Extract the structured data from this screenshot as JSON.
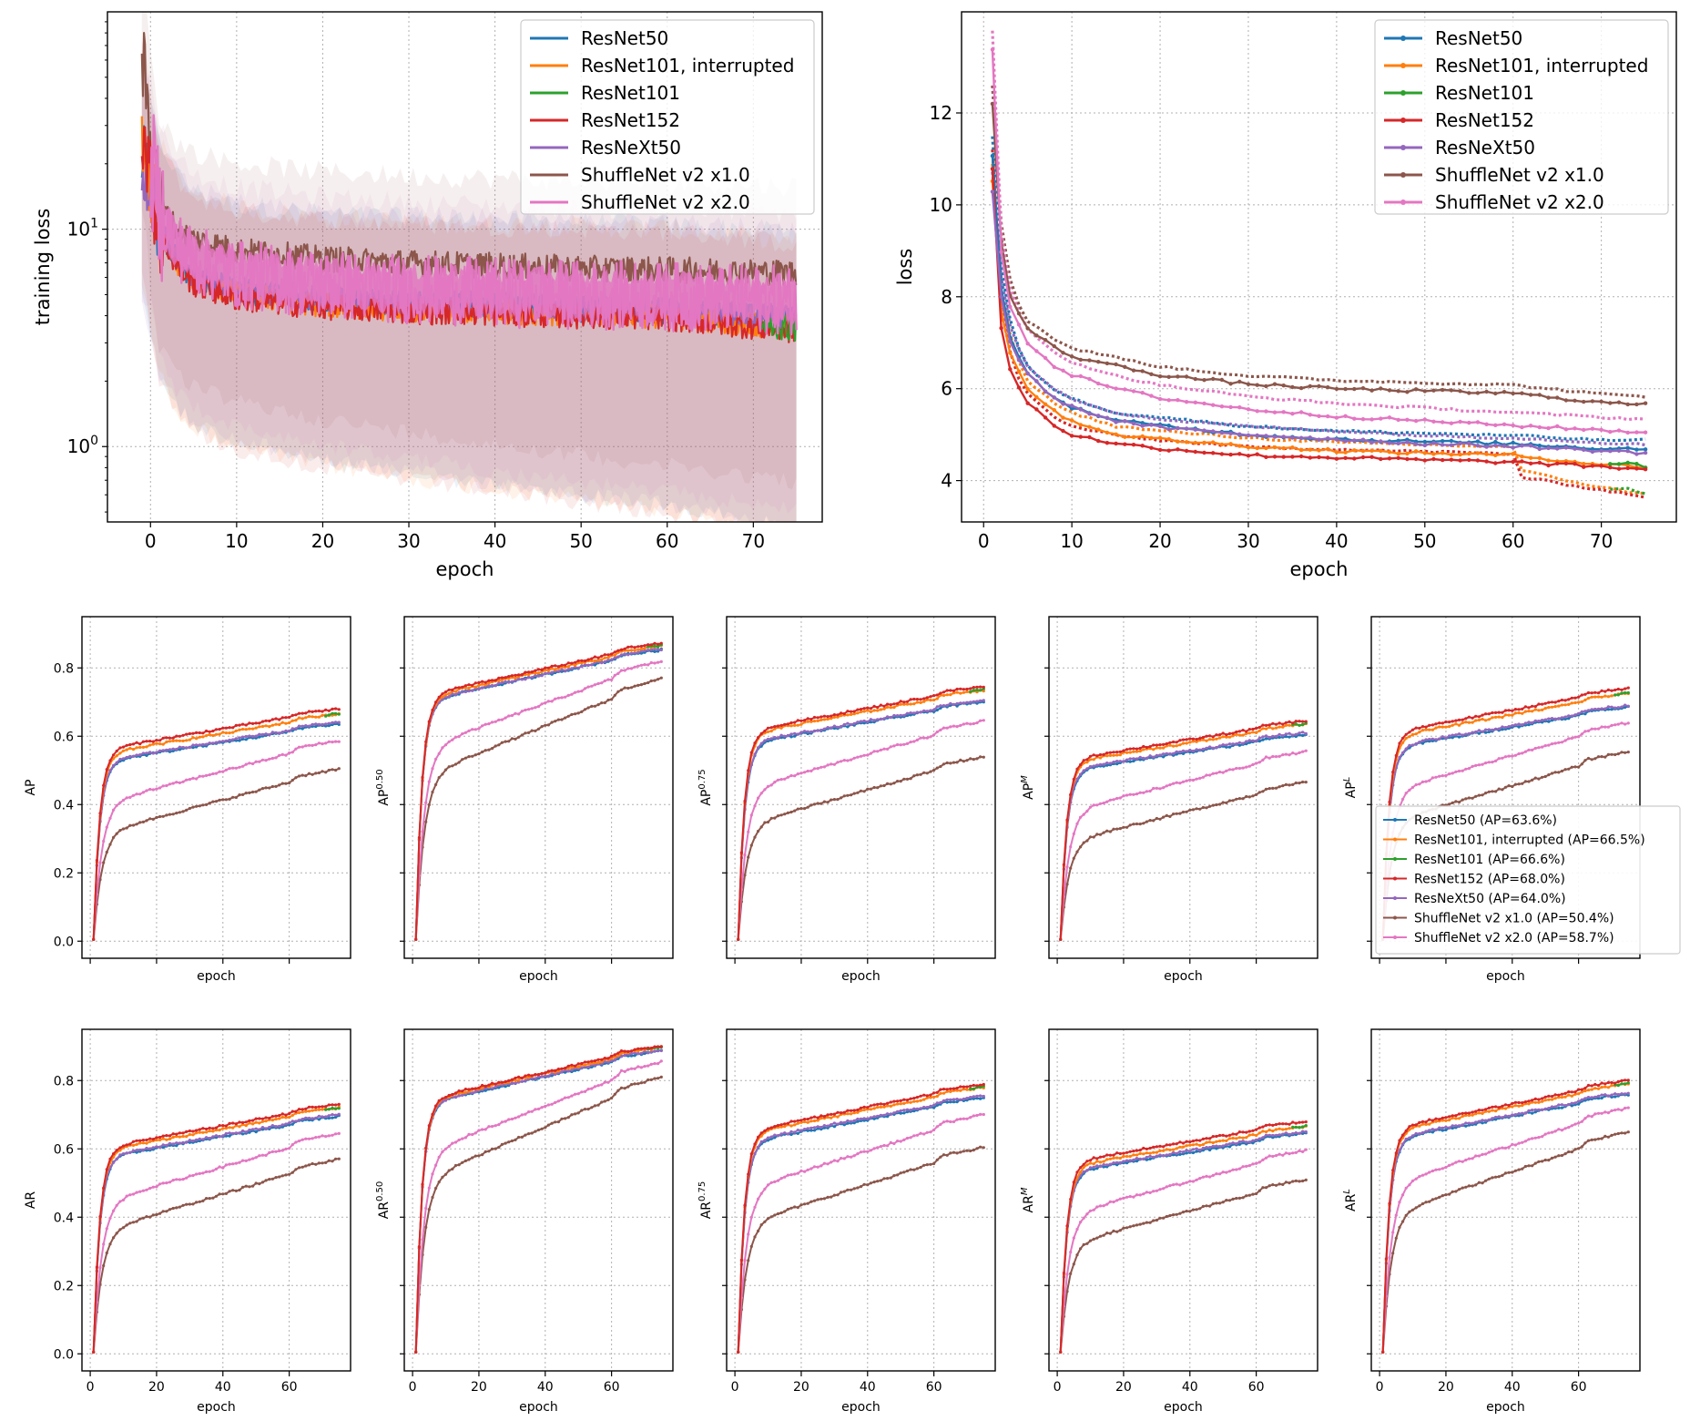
{
  "figure": "training-curves-grid",
  "series_names": [
    "ResNet50",
    "ResNet101, interrupted",
    "ResNet101",
    "ResNet152",
    "ResNeXt50",
    "ShuffleNet v2 x1.0",
    "ShuffleNet v2 x2.0"
  ],
  "colors": [
    "#1f77b4",
    "#ff7f0e",
    "#2ca02c",
    "#d62728",
    "#9467bd",
    "#8c564b",
    "#e377c2"
  ],
  "chart_data": [
    {
      "id": "training-loss",
      "type": "line",
      "scale": "log",
      "xlabel": "epoch",
      "ylabel": "training loss",
      "xlim": [
        -5,
        78
      ],
      "ylim": [
        0.45,
        100
      ],
      "xticks": [
        0,
        10,
        20,
        30,
        40,
        50,
        60,
        70
      ],
      "yticks": [
        {
          "value": 1,
          "base": "10",
          "exp": "0"
        },
        {
          "value": 10,
          "base": "10",
          "exp": "1"
        }
      ],
      "legend_position": "top-right",
      "series": [
        {
          "name": "ResNet50",
          "x": [
            -1,
            0,
            1,
            3,
            5,
            10,
            20,
            30,
            40,
            50,
            60,
            75
          ],
          "y": [
            24,
            15,
            10,
            7.2,
            6,
            5.2,
            4.7,
            4.5,
            4.4,
            4.3,
            4.2,
            3.8
          ]
        },
        {
          "name": "ResNet101, interrupted",
          "x": [
            -1,
            0,
            1,
            3,
            5,
            10,
            20,
            30,
            40,
            50,
            60,
            75
          ],
          "y": [
            26,
            15,
            10,
            7,
            5.8,
            5,
            4.5,
            4.3,
            4.2,
            4.1,
            4,
            3.5
          ]
        },
        {
          "name": "ResNet101",
          "x": [
            71,
            75
          ],
          "y": [
            3.6,
            3.5
          ]
        },
        {
          "name": "ResNet152",
          "x": [
            -1,
            0,
            1,
            3,
            5,
            10,
            20,
            30,
            40,
            50,
            60,
            75
          ],
          "y": [
            30,
            16,
            9.5,
            6.8,
            5.6,
            4.8,
            4.4,
            4.2,
            4.1,
            4,
            3.9,
            3.4
          ]
        },
        {
          "name": "ResNeXt50",
          "x": [
            -1,
            0,
            1,
            3,
            5,
            10,
            20,
            30,
            40,
            50,
            60,
            75
          ],
          "y": [
            22,
            14,
            10,
            7.3,
            6.1,
            5.3,
            4.8,
            4.6,
            4.5,
            4.4,
            4.3,
            3.9
          ]
        },
        {
          "name": "ShuffleNet v2 x1.0",
          "x": [
            -1,
            0,
            1,
            3,
            5,
            10,
            20,
            30,
            40,
            50,
            60,
            75
          ],
          "y": [
            60,
            25,
            13,
            10,
            9,
            8,
            7.3,
            7,
            6.8,
            6.6,
            6.5,
            6.3
          ]
        },
        {
          "name": "ShuffleNet v2 x2.0",
          "x": [
            0,
            1,
            3,
            5,
            10,
            20,
            30,
            40,
            50,
            60,
            75
          ],
          "y": [
            20,
            12,
            8.5,
            7.2,
            6.2,
            5.6,
            5.3,
            5.1,
            5,
            4.9,
            4.7
          ]
        }
      ]
    },
    {
      "id": "val-loss",
      "type": "line",
      "scale": "linear",
      "xlabel": "epoch",
      "ylabel": "loss",
      "xlim": [
        -2.5,
        78.5
      ],
      "ylim": [
        3.1,
        14.2
      ],
      "xticks": [
        0,
        10,
        20,
        30,
        40,
        50,
        60,
        70
      ],
      "yticks": [
        4,
        6,
        8,
        10,
        12
      ],
      "legend_position": "top-right",
      "series": [
        {
          "name": "ResNet50",
          "x": [
            1,
            2,
            3,
            5,
            8,
            10,
            15,
            20,
            30,
            40,
            50,
            60,
            70,
            75
          ],
          "y": [
            11.1,
            8.2,
            7.1,
            6.3,
            5.8,
            5.6,
            5.3,
            5.2,
            5.0,
            4.9,
            4.85,
            4.8,
            4.7,
            4.7
          ]
        },
        {
          "name": "ResNet101, interrupted",
          "x": [
            1,
            2,
            3,
            5,
            8,
            10,
            15,
            20,
            30,
            40,
            50,
            60,
            70,
            75
          ],
          "y": [
            10.5,
            7.7,
            6.8,
            6.0,
            5.5,
            5.3,
            5.0,
            4.9,
            4.75,
            4.65,
            4.6,
            4.55,
            4.35,
            4.3
          ]
        },
        {
          "name": "ResNet101",
          "x": [
            71,
            73,
            75
          ],
          "y": [
            4.35,
            4.4,
            4.3
          ]
        },
        {
          "name": "ResNet152",
          "x": [
            1,
            2,
            3,
            5,
            8,
            10,
            15,
            20,
            30,
            40,
            50,
            60,
            70,
            75
          ],
          "y": [
            10.8,
            7.3,
            6.4,
            5.7,
            5.2,
            5.0,
            4.8,
            4.7,
            4.55,
            4.5,
            4.45,
            4.4,
            4.3,
            4.25
          ]
        },
        {
          "name": "ResNeXt50",
          "x": [
            1,
            2,
            3,
            5,
            8,
            10,
            15,
            20,
            30,
            40,
            50,
            60,
            70,
            75
          ],
          "y": [
            10.3,
            8.0,
            7.0,
            6.3,
            5.8,
            5.6,
            5.3,
            5.15,
            5.0,
            4.9,
            4.8,
            4.75,
            4.65,
            4.6
          ]
        },
        {
          "name": "ShuffleNet v2 x1.0",
          "x": [
            1,
            2,
            3,
            5,
            8,
            10,
            15,
            20,
            30,
            40,
            50,
            60,
            70,
            75
          ],
          "y": [
            12.2,
            9.2,
            8.0,
            7.3,
            6.9,
            6.7,
            6.5,
            6.3,
            6.1,
            6.0,
            5.95,
            5.9,
            5.7,
            5.65
          ]
        },
        {
          "name": "ShuffleNet v2 x2.0",
          "x": [
            1,
            2,
            3,
            5,
            8,
            10,
            15,
            20,
            30,
            40,
            50,
            60,
            70,
            75
          ],
          "y": [
            13.4,
            9.0,
            7.8,
            7.0,
            6.5,
            6.3,
            6.0,
            5.8,
            5.55,
            5.4,
            5.3,
            5.2,
            5.1,
            5.05
          ]
        }
      ]
    },
    {
      "id": "AP",
      "type": "line",
      "ylabel": "AP",
      "sup": "",
      "final": [
        0.636,
        0.665,
        0.666,
        0.68,
        0.64,
        0.504,
        0.587
      ]
    },
    {
      "id": "AP50",
      "type": "line",
      "ylabel": "AP",
      "sup": "0.50",
      "final": [
        0.853,
        0.865,
        0.866,
        0.872,
        0.855,
        0.768,
        0.82
      ]
    },
    {
      "id": "AP75",
      "type": "line",
      "ylabel": "AP",
      "sup": "0.75",
      "final": [
        0.7,
        0.735,
        0.736,
        0.745,
        0.705,
        0.54,
        0.645
      ]
    },
    {
      "id": "APM",
      "type": "line",
      "ylabel": "AP",
      "sup": "M",
      "final": [
        0.605,
        0.635,
        0.636,
        0.645,
        0.61,
        0.465,
        0.555
      ]
    },
    {
      "id": "APL",
      "type": "line",
      "ylabel": "AP",
      "sup": "L",
      "final": [
        0.685,
        0.725,
        0.726,
        0.74,
        0.69,
        0.555,
        0.64
      ]
    },
    {
      "id": "AR",
      "type": "line",
      "ylabel": "AR",
      "sup": "",
      "final": [
        0.695,
        0.72,
        0.721,
        0.73,
        0.7,
        0.57,
        0.645
      ]
    },
    {
      "id": "AR50",
      "type": "line",
      "ylabel": "AR",
      "sup": "0.50",
      "final": [
        0.887,
        0.897,
        0.898,
        0.902,
        0.89,
        0.81,
        0.855
      ]
    },
    {
      "id": "AR75",
      "type": "line",
      "ylabel": "AR",
      "sup": "0.75",
      "final": [
        0.75,
        0.78,
        0.781,
        0.79,
        0.755,
        0.605,
        0.7
      ]
    },
    {
      "id": "ARM",
      "type": "line",
      "ylabel": "AR",
      "sup": "M",
      "final": [
        0.645,
        0.665,
        0.666,
        0.68,
        0.65,
        0.51,
        0.595
      ]
    },
    {
      "id": "ARL",
      "type": "line",
      "ylabel": "AR",
      "sup": "L",
      "final": [
        0.76,
        0.79,
        0.791,
        0.8,
        0.765,
        0.65,
        0.72
      ]
    }
  ],
  "small_axes": {
    "xlabel": "epoch",
    "xlim": [
      -2.5,
      78.5
    ],
    "ylim": [
      -0.05,
      0.95
    ],
    "xticks": [
      0,
      20,
      40,
      60
    ],
    "yticks": [
      "0.0",
      "0.2",
      "0.4",
      "0.6",
      "0.8"
    ]
  },
  "ap_legend": [
    "ResNet50 (AP=63.6%)",
    "ResNet101, interrupted (AP=66.5%)",
    "ResNet101 (AP=66.6%)",
    "ResNet152 (AP=68.0%)",
    "ResNeXt50 (AP=64.0%)",
    "ShuffleNet v2 x1.0 (AP=50.4%)",
    "ShuffleNet v2 x2.0 (AP=58.7%)"
  ]
}
